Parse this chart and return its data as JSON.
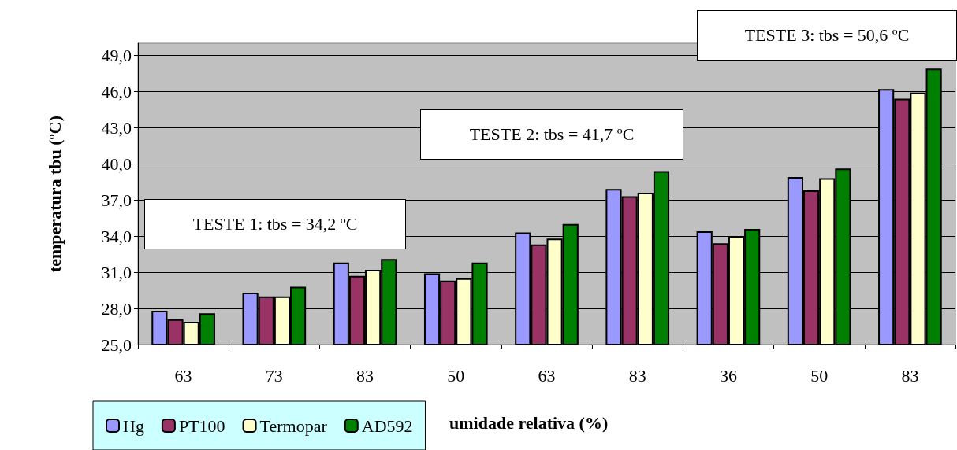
{
  "chart_data": {
    "type": "bar",
    "xlabel": "umidade relativa (%)",
    "ylabel": "temperatura tbu (ºC)",
    "categories": [
      "63",
      "73",
      "83",
      "50",
      "63",
      "83",
      "36",
      "50",
      "83"
    ],
    "series": [
      {
        "name": "Hg",
        "color": "#9999ff",
        "values": [
          27.8,
          29.3,
          31.8,
          30.9,
          34.3,
          37.9,
          34.4,
          38.9,
          46.2
        ]
      },
      {
        "name": "PT100",
        "color": "#993366",
        "values": [
          27.1,
          29.0,
          30.7,
          30.3,
          33.3,
          37.3,
          33.4,
          37.8,
          45.4
        ]
      },
      {
        "name": "Termopar",
        "color": "#ffffcc",
        "values": [
          26.9,
          29.0,
          31.2,
          30.5,
          33.8,
          37.6,
          34.0,
          38.8,
          45.9
        ]
      },
      {
        "name": "AD592",
        "color": "#008000",
        "values": [
          27.6,
          29.8,
          32.1,
          31.8,
          35.0,
          39.4,
          34.6,
          39.6,
          47.9
        ]
      }
    ],
    "ylim": [
      25,
      50
    ],
    "yticks": [
      {
        "value": 25,
        "label": "25,0"
      },
      {
        "value": 28,
        "label": "28,0"
      },
      {
        "value": 31,
        "label": "31,0"
      },
      {
        "value": 34,
        "label": "34,0"
      },
      {
        "value": 37,
        "label": "37,0"
      },
      {
        "value": 40,
        "label": "40,0"
      },
      {
        "value": 43,
        "label": "43,0"
      },
      {
        "value": 46,
        "label": "46,0"
      },
      {
        "value": 49,
        "label": "49,0"
      }
    ],
    "grid": "y",
    "legend": "bottom left",
    "annotations": [
      "TESTE 1: tbs = 34,2 ºC",
      "TESTE  2: tbs = 41,7 ºC",
      "TESTE  3: tbs = 50,6 ºC"
    ]
  }
}
